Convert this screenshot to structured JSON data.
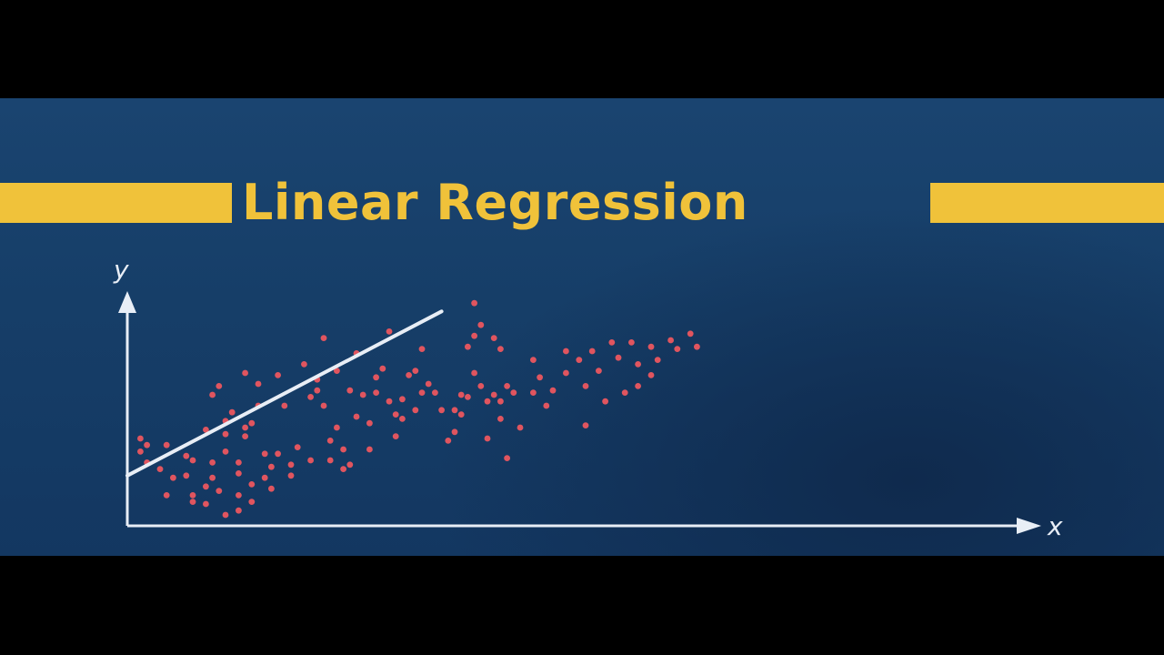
{
  "chart_data": {
    "type": "scatter",
    "title": "Linear Regression",
    "xlabel": "x",
    "ylabel": "y",
    "xlim": [
      0,
      100
    ],
    "ylim": [
      0,
      100
    ],
    "grid": false,
    "colors": {
      "points": "#e0555f",
      "regression_line": "#e8eef6",
      "axes": "#e8eef6",
      "title": "#f0c23a",
      "background": "#163e68"
    },
    "regression_line": {
      "x": [
        0,
        48
      ],
      "y": [
        23.0,
        98.2
      ]
    },
    "points": [
      {
        "x": 2,
        "y": 40
      },
      {
        "x": 2,
        "y": 34
      },
      {
        "x": 3,
        "y": 29
      },
      {
        "x": 3,
        "y": 37
      },
      {
        "x": 5,
        "y": 26
      },
      {
        "x": 6,
        "y": 37
      },
      {
        "x": 6,
        "y": 14
      },
      {
        "x": 7,
        "y": 22
      },
      {
        "x": 9,
        "y": 32
      },
      {
        "x": 9,
        "y": 23
      },
      {
        "x": 10,
        "y": 30
      },
      {
        "x": 10,
        "y": 14
      },
      {
        "x": 10,
        "y": 11
      },
      {
        "x": 12,
        "y": 44
      },
      {
        "x": 12,
        "y": 18
      },
      {
        "x": 12,
        "y": 10
      },
      {
        "x": 13,
        "y": 60
      },
      {
        "x": 13,
        "y": 29
      },
      {
        "x": 13,
        "y": 22
      },
      {
        "x": 14,
        "y": 64
      },
      {
        "x": 14,
        "y": 16
      },
      {
        "x": 15,
        "y": 48
      },
      {
        "x": 15,
        "y": 42
      },
      {
        "x": 15,
        "y": 34
      },
      {
        "x": 15,
        "y": 5
      },
      {
        "x": 16,
        "y": 52
      },
      {
        "x": 17,
        "y": 29
      },
      {
        "x": 17,
        "y": 24
      },
      {
        "x": 17,
        "y": 14
      },
      {
        "x": 17,
        "y": 7
      },
      {
        "x": 18,
        "y": 70
      },
      {
        "x": 18,
        "y": 45
      },
      {
        "x": 18,
        "y": 41
      },
      {
        "x": 19,
        "y": 47
      },
      {
        "x": 19,
        "y": 19
      },
      {
        "x": 19,
        "y": 11
      },
      {
        "x": 20,
        "y": 65
      },
      {
        "x": 20,
        "y": 55
      },
      {
        "x": 21,
        "y": 33
      },
      {
        "x": 21,
        "y": 22
      },
      {
        "x": 22,
        "y": 27
      },
      {
        "x": 22,
        "y": 17
      },
      {
        "x": 23,
        "y": 69
      },
      {
        "x": 23,
        "y": 33
      },
      {
        "x": 24,
        "y": 55
      },
      {
        "x": 25,
        "y": 28
      },
      {
        "x": 25,
        "y": 23
      },
      {
        "x": 26,
        "y": 36
      },
      {
        "x": 27,
        "y": 74
      },
      {
        "x": 28,
        "y": 59
      },
      {
        "x": 28,
        "y": 30
      },
      {
        "x": 29,
        "y": 67
      },
      {
        "x": 29,
        "y": 62
      },
      {
        "x": 30,
        "y": 86
      },
      {
        "x": 30,
        "y": 55
      },
      {
        "x": 31,
        "y": 39
      },
      {
        "x": 31,
        "y": 30
      },
      {
        "x": 32,
        "y": 71
      },
      {
        "x": 32,
        "y": 45
      },
      {
        "x": 33,
        "y": 35
      },
      {
        "x": 33,
        "y": 26
      },
      {
        "x": 34,
        "y": 62
      },
      {
        "x": 34,
        "y": 28
      },
      {
        "x": 35,
        "y": 79
      },
      {
        "x": 35,
        "y": 50
      },
      {
        "x": 36,
        "y": 60
      },
      {
        "x": 37,
        "y": 47
      },
      {
        "x": 37,
        "y": 35
      },
      {
        "x": 38,
        "y": 68
      },
      {
        "x": 38,
        "y": 61
      },
      {
        "x": 39,
        "y": 72
      },
      {
        "x": 40,
        "y": 89
      },
      {
        "x": 40,
        "y": 57
      },
      {
        "x": 41,
        "y": 51
      },
      {
        "x": 41,
        "y": 41
      },
      {
        "x": 42,
        "y": 58
      },
      {
        "x": 42,
        "y": 49
      },
      {
        "x": 43,
        "y": 69
      },
      {
        "x": 44,
        "y": 71
      },
      {
        "x": 44,
        "y": 53
      },
      {
        "x": 45,
        "y": 81
      },
      {
        "x": 45,
        "y": 61
      },
      {
        "x": 46,
        "y": 65
      },
      {
        "x": 47,
        "y": 61
      },
      {
        "x": 48,
        "y": 53
      },
      {
        "x": 49,
        "y": 39
      },
      {
        "x": 50,
        "y": 53
      },
      {
        "x": 50,
        "y": 43
      },
      {
        "x": 51,
        "y": 60
      },
      {
        "x": 51,
        "y": 51
      },
      {
        "x": 52,
        "y": 82
      },
      {
        "x": 52,
        "y": 59
      },
      {
        "x": 53,
        "y": 102
      },
      {
        "x": 53,
        "y": 87
      },
      {
        "x": 53,
        "y": 70
      },
      {
        "x": 54,
        "y": 92
      },
      {
        "x": 54,
        "y": 64
      },
      {
        "x": 55,
        "y": 57
      },
      {
        "x": 55,
        "y": 40
      },
      {
        "x": 56,
        "y": 86
      },
      {
        "x": 56,
        "y": 60
      },
      {
        "x": 57,
        "y": 81
      },
      {
        "x": 57,
        "y": 57
      },
      {
        "x": 57,
        "y": 49
      },
      {
        "x": 58,
        "y": 64
      },
      {
        "x": 58,
        "y": 31
      },
      {
        "x": 59,
        "y": 61
      },
      {
        "x": 60,
        "y": 45
      },
      {
        "x": 62,
        "y": 76
      },
      {
        "x": 62,
        "y": 61
      },
      {
        "x": 63,
        "y": 68
      },
      {
        "x": 64,
        "y": 55
      },
      {
        "x": 65,
        "y": 62
      },
      {
        "x": 67,
        "y": 80
      },
      {
        "x": 67,
        "y": 70
      },
      {
        "x": 69,
        "y": 76
      },
      {
        "x": 70,
        "y": 64
      },
      {
        "x": 70,
        "y": 46
      },
      {
        "x": 71,
        "y": 80
      },
      {
        "x": 72,
        "y": 71
      },
      {
        "x": 73,
        "y": 57
      },
      {
        "x": 74,
        "y": 84
      },
      {
        "x": 75,
        "y": 77
      },
      {
        "x": 76,
        "y": 61
      },
      {
        "x": 77,
        "y": 84
      },
      {
        "x": 78,
        "y": 74
      },
      {
        "x": 78,
        "y": 64
      },
      {
        "x": 80,
        "y": 82
      },
      {
        "x": 80,
        "y": 69
      },
      {
        "x": 81,
        "y": 76
      },
      {
        "x": 83,
        "y": 85
      },
      {
        "x": 84,
        "y": 81
      },
      {
        "x": 86,
        "y": 88
      },
      {
        "x": 87,
        "y": 82
      }
    ]
  }
}
